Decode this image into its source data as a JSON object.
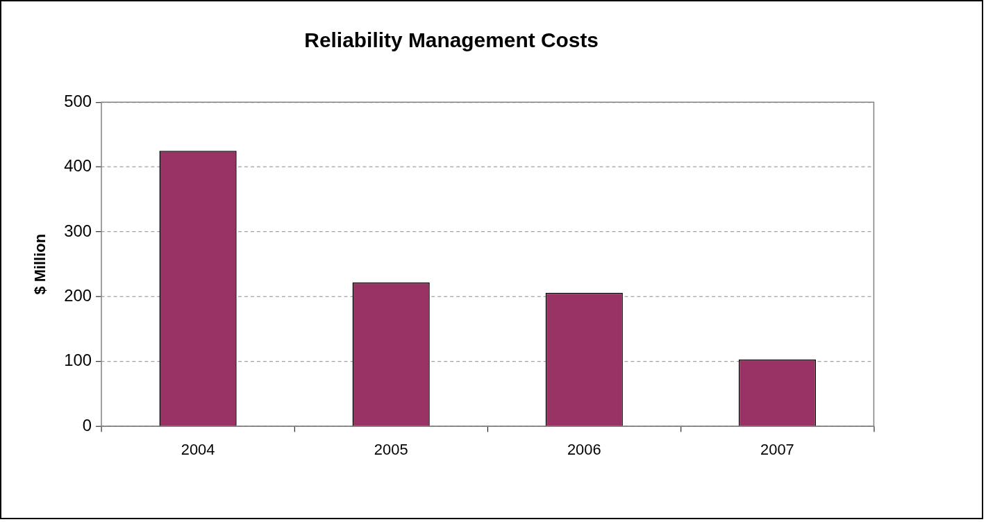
{
  "chart_data": {
    "type": "bar",
    "title": "Reliability Management Costs",
    "ylabel": "$ Million",
    "categories": [
      "2004",
      "2005",
      "2006",
      "2007"
    ],
    "values": [
      425,
      222,
      206,
      103
    ],
    "color": "#993366",
    "ylim": [
      0,
      500
    ],
    "yticks": [
      0,
      100,
      200,
      300,
      400,
      500
    ],
    "grid": "y",
    "legend": false
  }
}
